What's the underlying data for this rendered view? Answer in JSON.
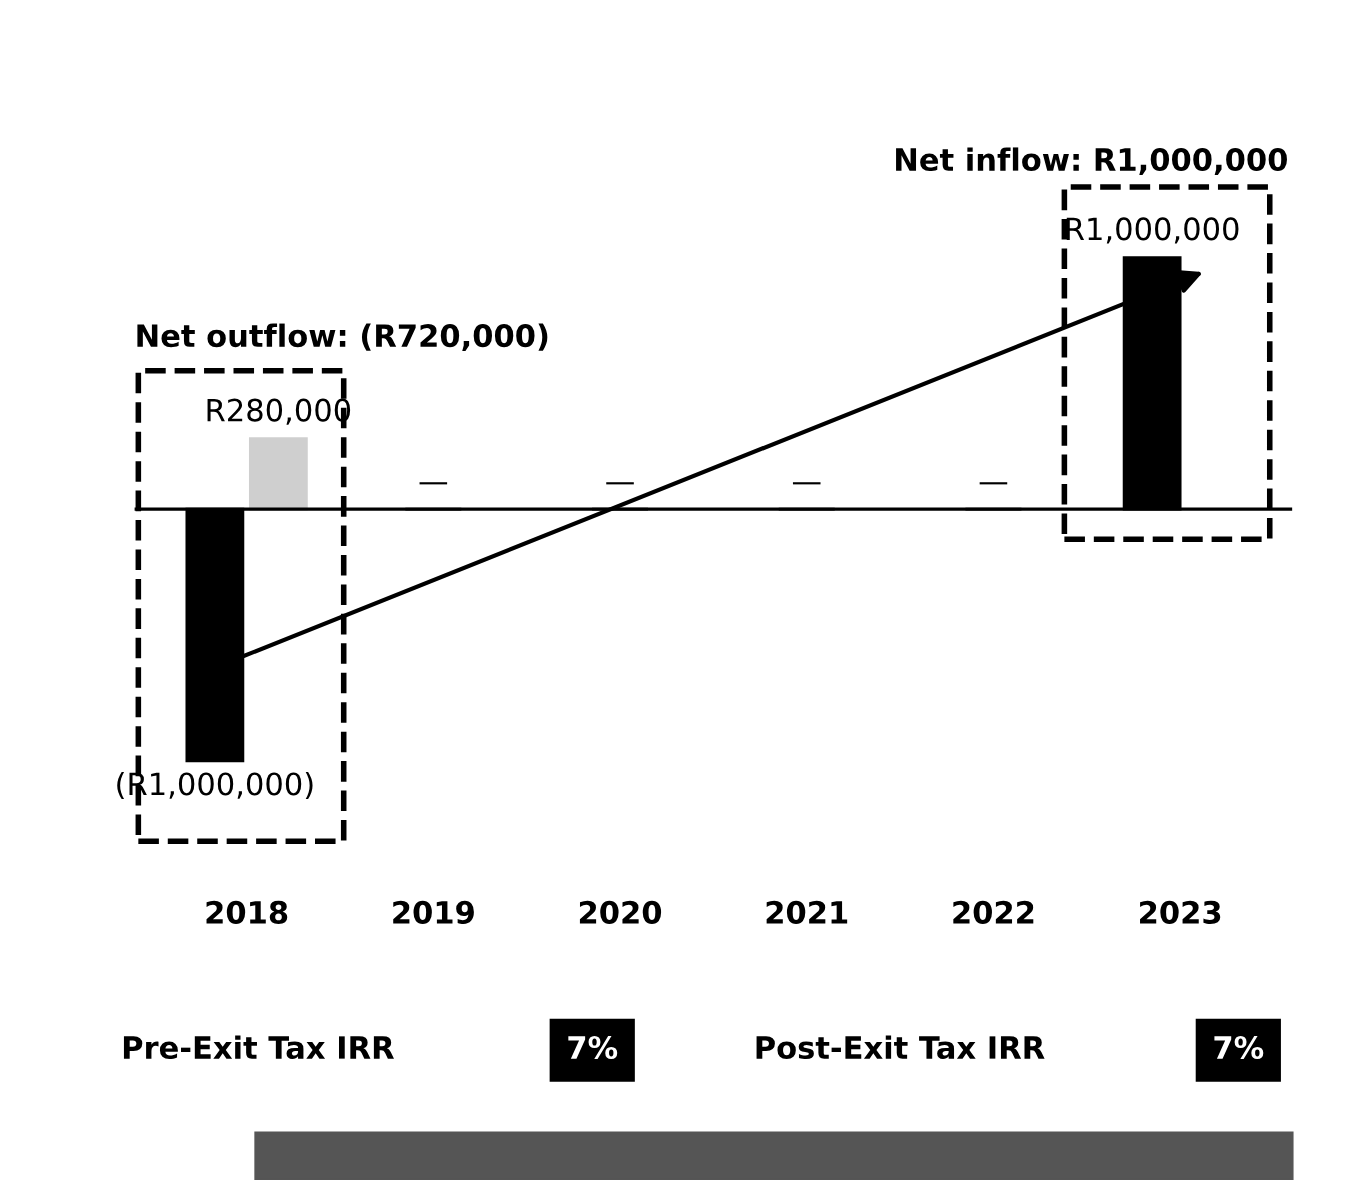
{
  "chart_data": {
    "type": "bar",
    "categories": [
      "2018",
      "2019",
      "2020",
      "2021",
      "2022",
      "2023"
    ],
    "series": [
      {
        "color": "#000000",
        "values": [
          -1000000,
          0,
          0,
          0,
          0,
          1000000
        ],
        "value_labels": [
          "(R1,000,000)",
          "—",
          "—",
          "—",
          "—",
          "R1,000,000"
        ]
      },
      {
        "color": "#cfcfcf",
        "values": [
          280000,
          null,
          null,
          null,
          null,
          null
        ],
        "value_labels": [
          "R280,000",
          null,
          null,
          null,
          null,
          null
        ]
      }
    ],
    "annotations": [
      "Net outflow: (R720,000)",
      "Net inflow: R1,000,000",
      "Pre-Exit Tax IRR",
      "7%",
      "Post-Exit Tax IRR",
      "7%"
    ],
    "grid": false,
    "legend": false
  }
}
